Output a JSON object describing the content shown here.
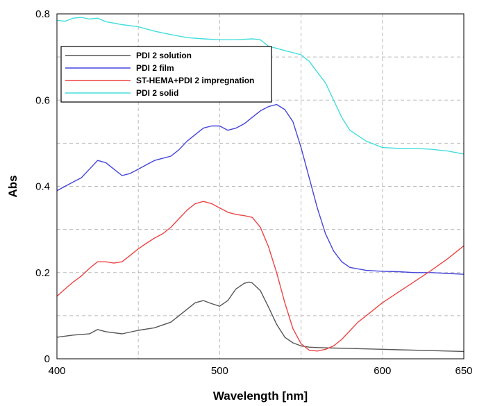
{
  "chart_data": {
    "type": "line",
    "title": "",
    "xlabel": "Wavelength [nm]",
    "ylabel": "Abs",
    "xlim": [
      400,
      650
    ],
    "ylim": [
      0,
      0.8
    ],
    "x_ticks": [
      400,
      500,
      600,
      650
    ],
    "y_ticks": [
      "0",
      "0.2",
      "0.4",
      "0.6",
      "0.8"
    ],
    "grid": true,
    "legend_position": "top-left",
    "series": [
      {
        "name": "PDI 2 solution",
        "color": "#555555",
        "x": [
          400,
          410,
          420,
          425,
          430,
          440,
          450,
          460,
          470,
          480,
          485,
          490,
          495,
          500,
          505,
          510,
          515,
          518,
          520,
          525,
          530,
          535,
          540,
          545,
          550,
          555,
          560,
          570,
          580,
          590,
          600,
          610,
          620,
          630,
          640,
          650
        ],
        "y": [
          0.05,
          0.055,
          0.058,
          0.068,
          0.063,
          0.058,
          0.066,
          0.072,
          0.085,
          0.115,
          0.13,
          0.135,
          0.128,
          0.122,
          0.135,
          0.162,
          0.175,
          0.178,
          0.176,
          0.158,
          0.12,
          0.08,
          0.05,
          0.037,
          0.03,
          0.027,
          0.026,
          0.025,
          0.024,
          0.023,
          0.022,
          0.021,
          0.02,
          0.019,
          0.018,
          0.017
        ]
      },
      {
        "name": "PDI 2 film",
        "color": "#4444dd",
        "x": [
          400,
          405,
          410,
          415,
          420,
          425,
          430,
          435,
          440,
          445,
          450,
          455,
          460,
          465,
          470,
          475,
          480,
          485,
          490,
          495,
          500,
          505,
          510,
          515,
          520,
          525,
          530,
          535,
          540,
          545,
          550,
          555,
          560,
          565,
          570,
          575,
          580,
          590,
          600,
          610,
          620,
          630,
          640,
          650
        ],
        "y": [
          0.39,
          0.4,
          0.41,
          0.42,
          0.44,
          0.46,
          0.455,
          0.44,
          0.425,
          0.43,
          0.44,
          0.45,
          0.46,
          0.465,
          0.47,
          0.485,
          0.505,
          0.52,
          0.535,
          0.54,
          0.54,
          0.53,
          0.535,
          0.545,
          0.56,
          0.575,
          0.585,
          0.59,
          0.578,
          0.55,
          0.49,
          0.42,
          0.35,
          0.29,
          0.25,
          0.225,
          0.212,
          0.205,
          0.203,
          0.202,
          0.2,
          0.2,
          0.198,
          0.196
        ]
      },
      {
        "name": "ST-HEMA+PDI 2 impregnation",
        "color": "#ee4444",
        "x": [
          400,
          405,
          410,
          415,
          420,
          425,
          430,
          435,
          440,
          445,
          450,
          455,
          460,
          465,
          470,
          475,
          480,
          485,
          490,
          495,
          500,
          505,
          510,
          515,
          520,
          525,
          530,
          535,
          540,
          545,
          550,
          555,
          560,
          565,
          570,
          575,
          580,
          585,
          590,
          600,
          610,
          620,
          630,
          640,
          650
        ],
        "y": [
          0.145,
          0.162,
          0.178,
          0.192,
          0.21,
          0.225,
          0.225,
          0.222,
          0.225,
          0.24,
          0.255,
          0.268,
          0.28,
          0.29,
          0.305,
          0.325,
          0.345,
          0.36,
          0.365,
          0.36,
          0.35,
          0.34,
          0.335,
          0.332,
          0.328,
          0.305,
          0.26,
          0.2,
          0.13,
          0.07,
          0.035,
          0.02,
          0.018,
          0.022,
          0.03,
          0.045,
          0.065,
          0.085,
          0.1,
          0.13,
          0.155,
          0.18,
          0.205,
          0.232,
          0.262
        ]
      },
      {
        "name": "PDI 2 solid",
        "color": "#44dddd",
        "x": [
          400,
          405,
          410,
          415,
          420,
          425,
          430,
          440,
          450,
          460,
          470,
          480,
          490,
          500,
          510,
          520,
          525,
          530,
          540,
          550,
          555,
          560,
          565,
          570,
          575,
          580,
          590,
          600,
          610,
          620,
          630,
          640,
          650
        ],
        "y": [
          0.785,
          0.783,
          0.79,
          0.792,
          0.788,
          0.79,
          0.782,
          0.775,
          0.77,
          0.76,
          0.752,
          0.745,
          0.742,
          0.74,
          0.74,
          0.742,
          0.74,
          0.725,
          0.715,
          0.705,
          0.69,
          0.665,
          0.64,
          0.6,
          0.56,
          0.53,
          0.505,
          0.49,
          0.488,
          0.488,
          0.486,
          0.482,
          0.475
        ]
      }
    ]
  }
}
